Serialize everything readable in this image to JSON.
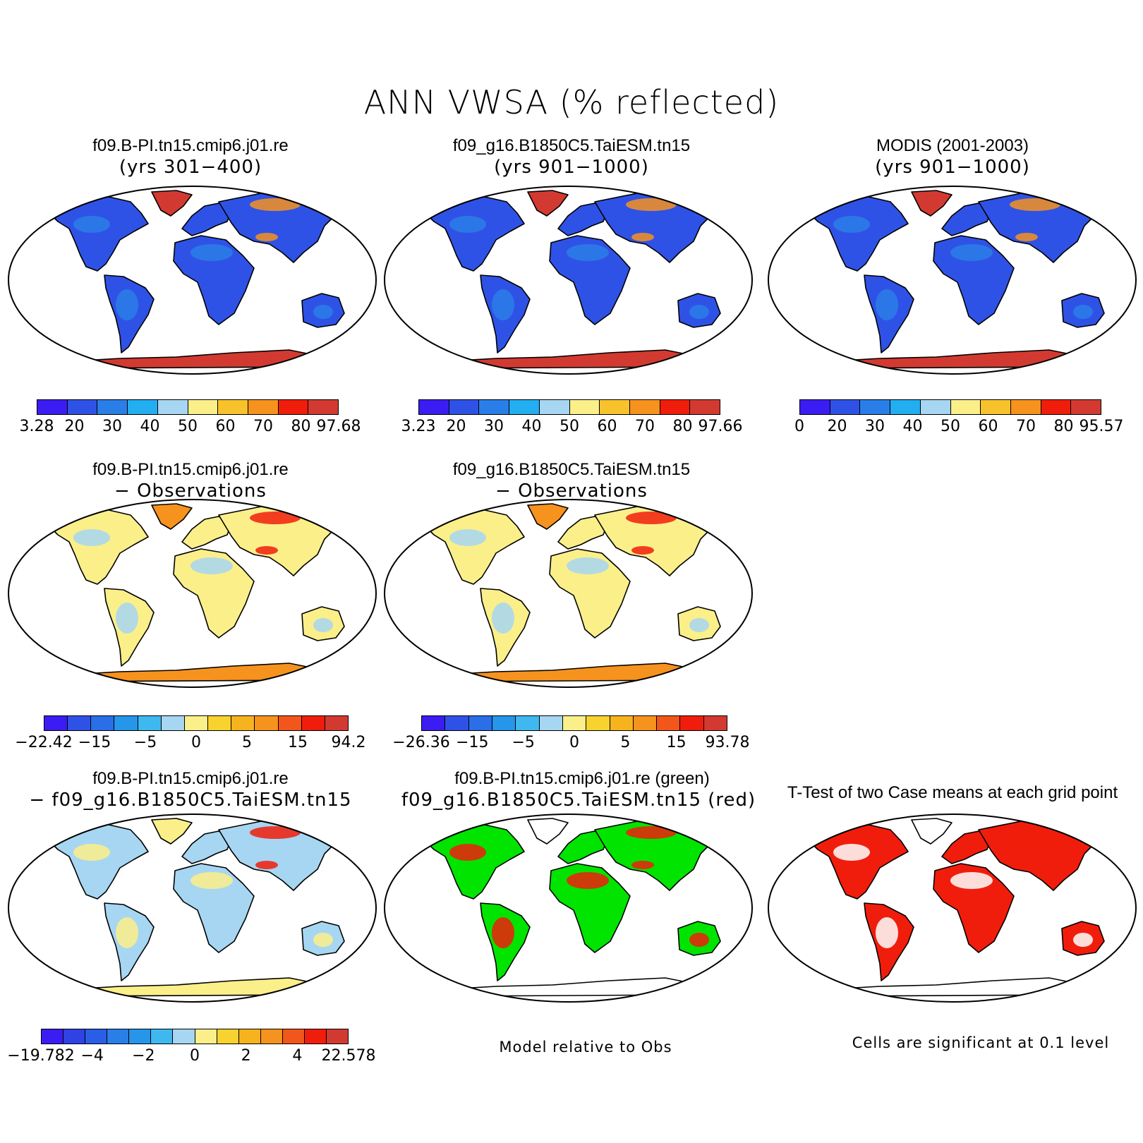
{
  "figure": {
    "title": "ANN VWSA (% reflected)"
  },
  "panels": [
    {
      "id": "p1",
      "title": "f09.B-PI.tn15.cmip6.j01.re",
      "subtitle": "(yrs 301−400)",
      "scheme": "abs"
    },
    {
      "id": "p2",
      "title": "f09_g16.B1850C5.TaiESM.tn15",
      "subtitle": "(yrs 901−1000)",
      "scheme": "abs"
    },
    {
      "id": "p3",
      "title": "MODIS (2001-2003)",
      "subtitle": "(yrs 901−1000)",
      "scheme": "abs"
    },
    {
      "id": "p4",
      "title": "f09.B-PI.tn15.cmip6.j01.re",
      "subtitle": "− Observations",
      "scheme": "diff"
    },
    {
      "id": "p5",
      "title": "f09_g16.B1850C5.TaiESM.tn15",
      "subtitle": "− Observations",
      "scheme": "diff"
    },
    {
      "id": "p6",
      "title": "f09.B-PI.tn15.cmip6.j01.re",
      "subtitle": "− f09_g16.B1850C5.TaiESM.tn15",
      "scheme": "dd"
    },
    {
      "id": "p7",
      "title": "f09.B-PI.tn15.cmip6.j01.re (green)",
      "subtitle": "f09_g16.B1850C5.TaiESM.tn15 (red)",
      "scheme": "cmp"
    },
    {
      "id": "p8",
      "title": "T-Test of two Case means at each grid point",
      "subtitle": "",
      "scheme": "ttest"
    }
  ],
  "colorbars": [
    {
      "id": "cb1",
      "labels": [
        "3.28",
        "20",
        "30",
        "40",
        "50",
        "60",
        "70",
        "80",
        "97.68"
      ],
      "colors": [
        "#3b1cf2",
        "#2f52e6",
        "#2a7ee8",
        "#22aef0",
        "#a6d6f2",
        "#fbef8a",
        "#f7c22c",
        "#f6921e",
        "#f11d0c",
        "#d23a31"
      ]
    },
    {
      "id": "cb2",
      "labels": [
        "3.23",
        "20",
        "30",
        "40",
        "50",
        "60",
        "70",
        "80",
        "97.66"
      ],
      "colors": [
        "#3b1cf2",
        "#2f52e6",
        "#2a7ee8",
        "#22aef0",
        "#a6d6f2",
        "#fbef8a",
        "#f7c22c",
        "#f6921e",
        "#f11d0c",
        "#d23a31"
      ]
    },
    {
      "id": "cb3",
      "labels": [
        "0",
        "20",
        "30",
        "40",
        "50",
        "60",
        "70",
        "80",
        "95.57"
      ],
      "colors": [
        "#3b1cf2",
        "#2f52e6",
        "#2a7ee8",
        "#22aef0",
        "#a6d6f2",
        "#fbef8a",
        "#f7c22c",
        "#f6921e",
        "#f11d0c",
        "#d23a31"
      ]
    },
    {
      "id": "cb4",
      "labels": [
        "−22.42",
        "−15",
        "−5",
        "0",
        "5",
        "15",
        "94.2"
      ],
      "colors": [
        "#3b1cf2",
        "#2f52e6",
        "#2a6ee8",
        "#2596ea",
        "#3fb8f0",
        "#a6d6f2",
        "#fbef8a",
        "#f8d22e",
        "#f7b31e",
        "#f6921e",
        "#f2561a",
        "#f11d0c",
        "#d23a31"
      ]
    },
    {
      "id": "cb5",
      "labels": [
        "−26.36",
        "−15",
        "−5",
        "0",
        "5",
        "15",
        "93.78"
      ],
      "colors": [
        "#3b1cf2",
        "#2f52e6",
        "#2a6ee8",
        "#2596ea",
        "#3fb8f0",
        "#a6d6f2",
        "#fbef8a",
        "#f8d22e",
        "#f7b31e",
        "#f6921e",
        "#f2561a",
        "#f11d0c",
        "#d23a31"
      ]
    },
    {
      "id": "cb6",
      "labels": [
        "−19.782",
        "−4",
        "−2",
        "0",
        "2",
        "4",
        "22.578"
      ],
      "colors": [
        "#3b1cf2",
        "#2f42e6",
        "#2a5ee8",
        "#2a7ee8",
        "#2596ea",
        "#3fb8f0",
        "#a6d6f2",
        "#fbef8a",
        "#f8d22e",
        "#f7b31e",
        "#f6921e",
        "#f2561a",
        "#f11d0c",
        "#d23a31"
      ]
    }
  ],
  "notes": {
    "model_relative": "Model relative to Obs",
    "significance": "Cells are significant at 0.1 level"
  },
  "scheme_colors": {
    "abs": {
      "land": "#2f52e6",
      "land2": "#2a7ee8",
      "hot": "#f6921e",
      "ice": "#d23a31"
    },
    "diff": {
      "land": "#fbef8a",
      "land2": "#a6d6f2",
      "hot": "#f11d0c",
      "ice": "#f6921e"
    },
    "dd": {
      "land": "#a6d6f2",
      "land2": "#fbef8a",
      "hot": "#f11d0c",
      "ice": "#fbef8a"
    },
    "cmp": {
      "land": "#00e400",
      "land2": "#f11d0c",
      "hot": "#f11d0c",
      "ice": "#ffffff"
    },
    "ttest": {
      "land": "#f11d0c",
      "land2": "#ffffff",
      "hot": "#f11d0c",
      "ice": "#ffffff"
    }
  }
}
